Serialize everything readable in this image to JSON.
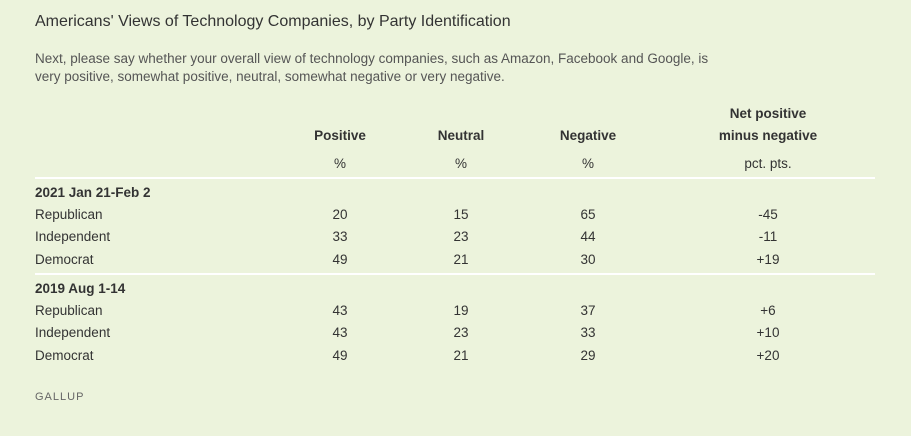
{
  "title": "Americans' Views of Technology Companies, by Party Identification",
  "subtitle": "Next, please say whether your overall view of technology companies, such as Amazon, Facebook and Google, is very positive, somewhat positive, neutral, somewhat negative or very negative.",
  "source": "GALLUP",
  "background_color": "#ecf3dc",
  "chart_data": {
    "type": "table",
    "columns": [
      {
        "header": "Positive",
        "unit": "%"
      },
      {
        "header": "Neutral",
        "unit": "%"
      },
      {
        "header": "Negative",
        "unit": "%"
      },
      {
        "header_line1": "Net positive",
        "header_line2": "minus negative",
        "unit": "pct. pts."
      }
    ],
    "groups": [
      {
        "label": "2021 Jan 21-Feb 2",
        "rows": [
          {
            "label": "Republican",
            "values": [
              "20",
              "15",
              "65",
              "-45"
            ]
          },
          {
            "label": "Independent",
            "values": [
              "33",
              "23",
              "44",
              "-11"
            ]
          },
          {
            "label": "Democrat",
            "values": [
              "49",
              "21",
              "30",
              "+19"
            ]
          }
        ]
      },
      {
        "label": "2019 Aug 1-14",
        "rows": [
          {
            "label": "Republican",
            "values": [
              "43",
              "19",
              "37",
              "+6"
            ]
          },
          {
            "label": "Independent",
            "values": [
              "43",
              "23",
              "33",
              "+10"
            ]
          },
          {
            "label": "Democrat",
            "values": [
              "49",
              "21",
              "29",
              "+20"
            ]
          }
        ]
      }
    ]
  }
}
